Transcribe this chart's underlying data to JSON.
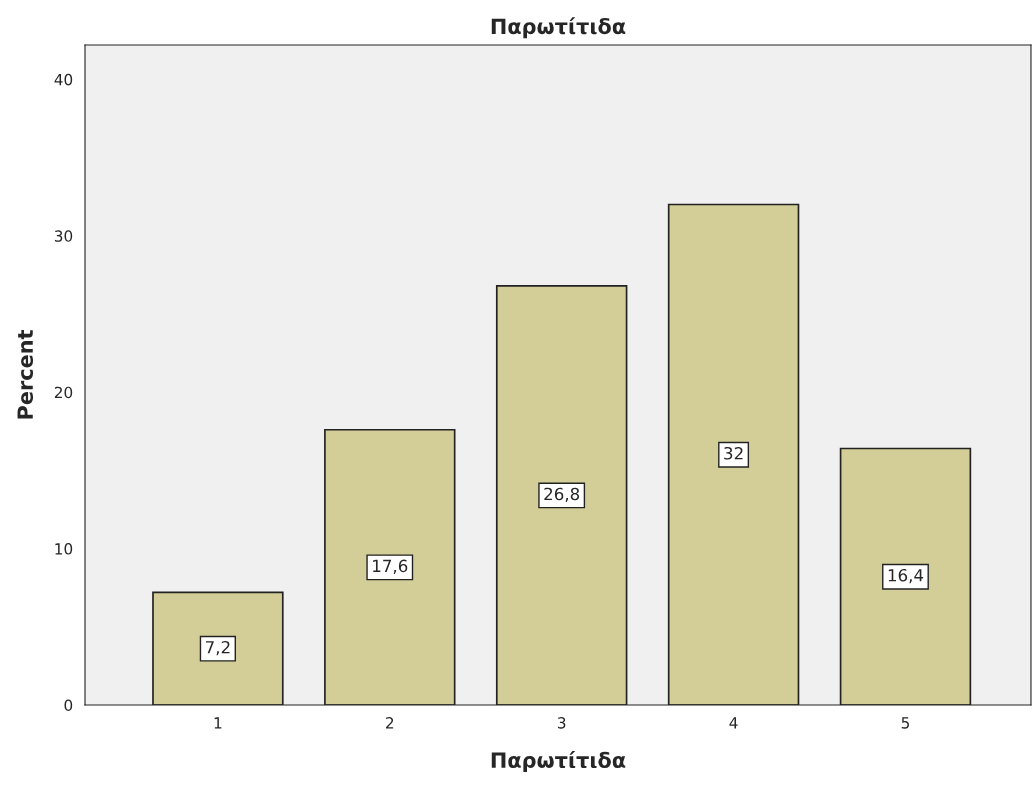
{
  "chart_data": {
    "type": "bar",
    "title": "Παρωτίτιδα",
    "xlabel": "Παρωτίτιδα",
    "ylabel": "Percent",
    "categories": [
      "1",
      "2",
      "3",
      "4",
      "5"
    ],
    "values": [
      7.2,
      17.6,
      26.8,
      32,
      16.4
    ],
    "value_labels": [
      "7,2",
      "17,6",
      "26,8",
      "32",
      "16,4"
    ],
    "color": "#d3ce97",
    "ylim": [
      0,
      42.2
    ],
    "yticks": [
      0,
      10,
      20,
      30,
      40
    ],
    "grid": false
  }
}
